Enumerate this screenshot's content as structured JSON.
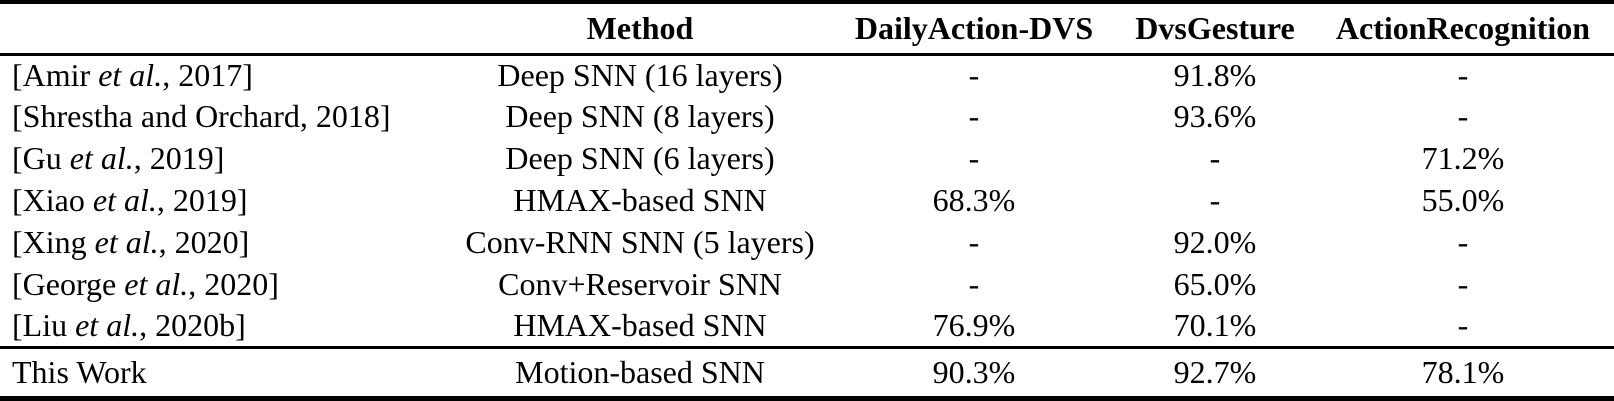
{
  "table": {
    "headers": {
      "citation": "",
      "method": "Method",
      "dailyaction": "DailyAction-DVS",
      "dvsgesture": "DvsGesture",
      "actionrecognition": "ActionRecognition"
    },
    "rows": [
      {
        "cite_pre": "[Amir ",
        "cite_it": "et al.",
        "cite_post": ", 2017]",
        "method": "Deep SNN (16 layers)",
        "dailyaction": "-",
        "dvsgesture": "91.8%",
        "actionrecognition": "-"
      },
      {
        "cite_pre": "[Shrestha and Orchard, 2018]",
        "cite_it": "",
        "cite_post": "",
        "method": "Deep SNN (8 layers)",
        "dailyaction": "-",
        "dvsgesture": "93.6%",
        "actionrecognition": "-"
      },
      {
        "cite_pre": "[Gu ",
        "cite_it": "et al.",
        "cite_post": ", 2019]",
        "method": "Deep SNN (6 layers)",
        "dailyaction": "-",
        "dvsgesture": "-",
        "actionrecognition": "71.2%"
      },
      {
        "cite_pre": "[Xiao ",
        "cite_it": "et al.",
        "cite_post": ", 2019]",
        "method": "HMAX-based SNN",
        "dailyaction": "68.3%",
        "dvsgesture": "-",
        "actionrecognition": "55.0%"
      },
      {
        "cite_pre": "[Xing ",
        "cite_it": "et al.",
        "cite_post": ", 2020]",
        "method": "Conv-RNN SNN (5 layers)",
        "dailyaction": "-",
        "dvsgesture": "92.0%",
        "actionrecognition": "-"
      },
      {
        "cite_pre": "[George ",
        "cite_it": "et al.",
        "cite_post": ", 2020]",
        "method": "Conv+Reservoir SNN",
        "dailyaction": "-",
        "dvsgesture": "65.0%",
        "actionrecognition": "-"
      },
      {
        "cite_pre": "[Liu ",
        "cite_it": "et al.",
        "cite_post": ", 2020b]",
        "method": "HMAX-based SNN",
        "dailyaction": "76.9%",
        "dvsgesture": "70.1%",
        "actionrecognition": "-"
      }
    ],
    "final": {
      "cite_pre": "This Work",
      "cite_it": "",
      "cite_post": "",
      "method": "Motion-based SNN",
      "dailyaction": "90.3%",
      "dvsgesture": "92.7%",
      "actionrecognition": "78.1%"
    }
  },
  "colors": {
    "text": "#000000",
    "background": "#ffffff",
    "rule": "#000000"
  },
  "chart_data": {
    "type": "table",
    "columns": [
      "",
      "Method",
      "DailyAction-DVS",
      "DvsGesture",
      "ActionRecognition"
    ],
    "rows": [
      [
        "[Amir et al., 2017]",
        "Deep SNN (16 layers)",
        "-",
        "91.8%",
        "-"
      ],
      [
        "[Shrestha and Orchard, 2018]",
        "Deep SNN (8 layers)",
        "-",
        "93.6%",
        "-"
      ],
      [
        "[Gu et al., 2019]",
        "Deep SNN (6 layers)",
        "-",
        "-",
        "71.2%"
      ],
      [
        "[Xiao et al., 2019]",
        "HMAX-based SNN",
        "68.3%",
        "-",
        "55.0%"
      ],
      [
        "[Xing et al., 2020]",
        "Conv-RNN SNN (5 layers)",
        "-",
        "92.0%",
        "-"
      ],
      [
        "[George et al., 2020]",
        "Conv+Reservoir SNN",
        "-",
        "65.0%",
        "-"
      ],
      [
        "[Liu et al., 2020b]",
        "HMAX-based SNN",
        "76.9%",
        "70.1%",
        "-"
      ],
      [
        "This Work",
        "Motion-based SNN",
        "90.3%",
        "92.7%",
        "78.1%"
      ]
    ]
  }
}
